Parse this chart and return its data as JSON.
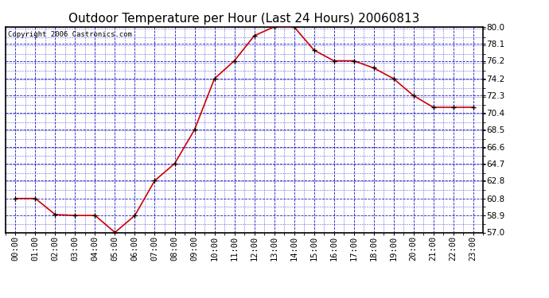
{
  "title": "Outdoor Temperature per Hour (Last 24 Hours) 20060813",
  "copyright_text": "Copyright 2006 Castronics.com",
  "hours": [
    "00:00",
    "01:00",
    "02:00",
    "03:00",
    "04:00",
    "05:00",
    "06:00",
    "07:00",
    "08:00",
    "09:00",
    "10:00",
    "11:00",
    "12:00",
    "13:00",
    "14:00",
    "15:00",
    "16:00",
    "17:00",
    "18:00",
    "19:00",
    "20:00",
    "21:00",
    "22:00",
    "23:00"
  ],
  "temperatures": [
    60.8,
    60.8,
    59.0,
    58.9,
    58.9,
    57.0,
    58.9,
    62.8,
    64.7,
    68.5,
    74.2,
    76.2,
    79.0,
    80.0,
    80.0,
    77.4,
    76.2,
    76.2,
    75.4,
    74.2,
    72.3,
    71.0,
    71.0,
    71.0
  ],
  "line_color": "#cc0000",
  "marker_color": "#000000",
  "background_color": "#ffffff",
  "plot_bg_color": "#ffffff",
  "grid_color": "#0000bb",
  "ylim_min": 57.0,
  "ylim_max": 80.0,
  "yticks": [
    57.0,
    58.9,
    60.8,
    62.8,
    64.7,
    66.6,
    68.5,
    70.4,
    72.3,
    74.2,
    76.2,
    78.1,
    80.0
  ],
  "title_fontsize": 11,
  "tick_fontsize": 7.5,
  "copyright_fontsize": 6.5
}
